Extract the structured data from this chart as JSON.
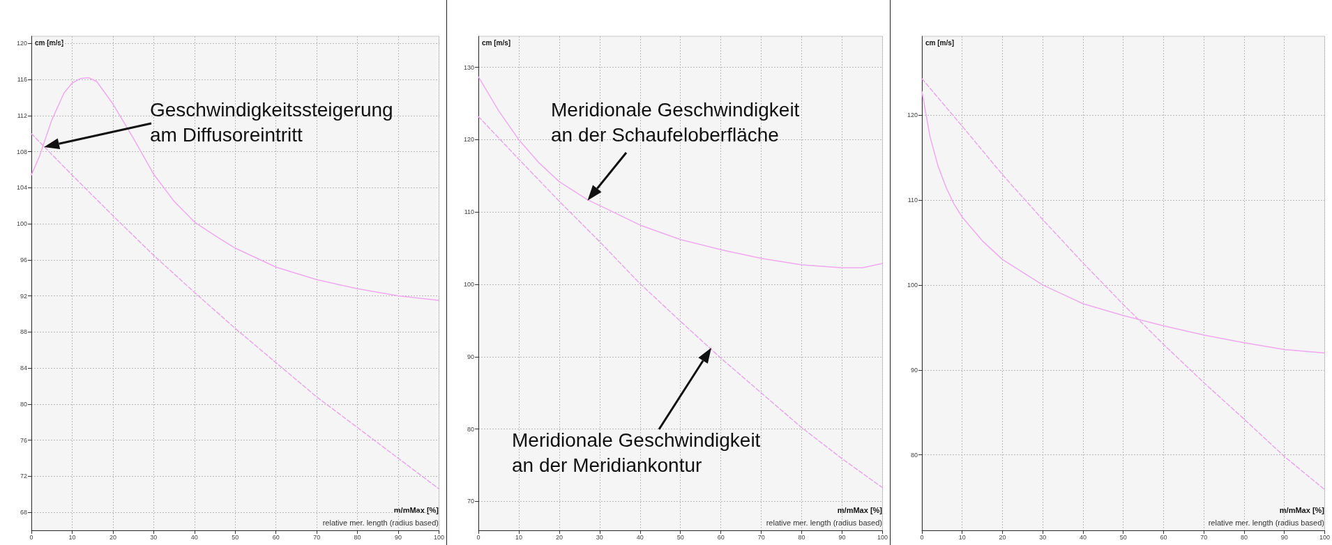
{
  "chart_data": [
    {
      "type": "line",
      "xlabel": "m/mMax [%]",
      "ylabel": "cm [m/s]",
      "xlim": [
        0,
        100
      ],
      "xticks": [
        0,
        10,
        20,
        30,
        40,
        50,
        60,
        70,
        80,
        90,
        100
      ],
      "ylim": [
        66,
        120.8
      ],
      "yticks": [
        68,
        72,
        76,
        80,
        84,
        88,
        92,
        96,
        100,
        104,
        108,
        112,
        116,
        120
      ],
      "grid": true,
      "marker": "none",
      "annotations": [
        "Geschwindigkeitssteigerung\nam Diffusoreintritt",
        "relative mer. length (radius based)"
      ],
      "series": [
        {
          "color": "#f0a8f0",
          "line_style": "solid",
          "x": [
            0,
            2,
            5,
            8,
            10,
            12,
            14,
            16,
            20,
            25,
            30,
            35,
            40,
            45,
            50,
            60,
            70,
            80,
            90,
            100
          ],
          "values": [
            105.4,
            107.5,
            111.5,
            114.5,
            115.6,
            116.1,
            116.2,
            115.8,
            113.3,
            109.5,
            105.5,
            102.5,
            100.2,
            98.7,
            97.3,
            95.2,
            93.8,
            92.8,
            92.0,
            91.5
          ]
        },
        {
          "color": "#eaa6ea",
          "line_style": "dashed",
          "x": [
            0,
            10,
            20,
            30,
            40,
            50,
            60,
            70,
            80,
            90,
            100
          ],
          "values": [
            110.0,
            105.4,
            100.9,
            96.5,
            92.4,
            88.4,
            84.6,
            80.8,
            77.4,
            74.0,
            70.6
          ]
        }
      ]
    },
    {
      "type": "line",
      "xlabel": "m/mMax [%]",
      "ylabel": "cm [m/s]",
      "xlim": [
        0,
        100
      ],
      "xticks": [
        0,
        10,
        20,
        30,
        40,
        50,
        60,
        70,
        80,
        90,
        100
      ],
      "ylim": [
        66,
        134.3
      ],
      "yticks": [
        70,
        80,
        90,
        100,
        110,
        120,
        130
      ],
      "grid": true,
      "marker": "none",
      "annotations": [
        {
          "text": "Meridionale Geschwindigkeit\nan der Schaufeloberfläche",
          "x": 27,
          "y": 111.6
        },
        "Meridionale Geschwindigkeit\nan der Meridiankontur",
        "relative mer. length (radius based)"
      ],
      "series": [
        {
          "color": "#f0a8f0",
          "line_style": "solid",
          "x": [
            0,
            5,
            10,
            15,
            20,
            27,
            30,
            40,
            50,
            60,
            70,
            80,
            90,
            95,
            100
          ],
          "values": [
            128.7,
            124.0,
            120.0,
            116.8,
            114.2,
            111.7,
            110.9,
            108.2,
            106.2,
            104.8,
            103.6,
            102.7,
            102.3,
            102.3,
            102.9
          ]
        },
        {
          "color": "#eaa6ea",
          "line_style": "dashed",
          "x": [
            0,
            10,
            20,
            30,
            40,
            50,
            60,
            70,
            80,
            90,
            100
          ],
          "values": [
            123.2,
            117.3,
            111.5,
            105.9,
            100.1,
            94.9,
            89.8,
            85.0,
            80.2,
            75.9,
            71.9
          ]
        }
      ]
    },
    {
      "type": "line",
      "xlabel": "m/mMax [%]",
      "ylabel": "cm [m/s]",
      "xlim": [
        0,
        100
      ],
      "xticks": [
        0,
        10,
        20,
        30,
        40,
        50,
        60,
        70,
        80,
        90,
        100
      ],
      "ylim": [
        71.1,
        129.3
      ],
      "yticks": [
        80,
        90,
        100,
        110,
        120
      ],
      "grid": true,
      "marker": "none",
      "annotations": [
        "relative mer. length (radius based)"
      ],
      "series": [
        {
          "color": "#f0a8f0",
          "line_style": "solid",
          "x": [
            0,
            2,
            4,
            6,
            8,
            10,
            15,
            20,
            30,
            40,
            50,
            60,
            70,
            80,
            90,
            100
          ],
          "values": [
            122.8,
            117.5,
            114.0,
            111.5,
            109.5,
            108.0,
            105.2,
            103.0,
            100.0,
            97.8,
            96.4,
            95.2,
            94.1,
            93.2,
            92.4,
            92.0
          ]
        },
        {
          "color": "#eaa6ea",
          "line_style": "dashed",
          "x": [
            0,
            10,
            20,
            30,
            40,
            50,
            60,
            70,
            80,
            90,
            100
          ],
          "values": [
            124.3,
            118.7,
            113.0,
            107.7,
            102.6,
            97.7,
            93.0,
            88.5,
            84.2,
            79.8,
            75.9
          ]
        }
      ]
    }
  ]
}
